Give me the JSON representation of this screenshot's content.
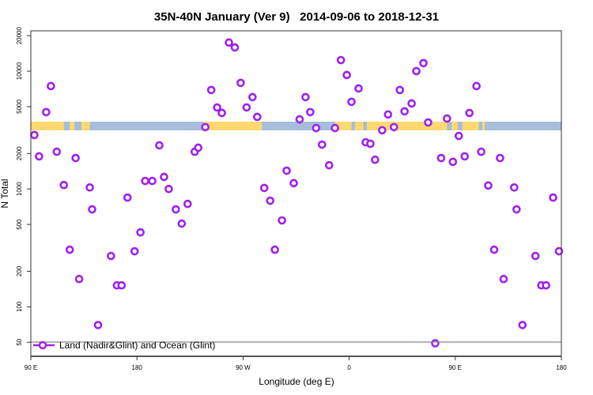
{
  "chart_data": {
    "type": "scatter",
    "title": "35N-40N January (Ver 9)   2014-09-06 to 2018-12-31",
    "xlabel": "Longitude (deg E)",
    "ylabel": "N Total",
    "yscale": "log",
    "xlim": [
      90,
      540
    ],
    "ylim": [
      38,
      22000
    ],
    "xticks": [
      {
        "value": 90,
        "label": "90 E"
      },
      {
        "value": 180,
        "label": "180"
      },
      {
        "value": 270,
        "label": "90 W"
      },
      {
        "value": 360,
        "label": "0"
      },
      {
        "value": 450,
        "label": "90 E"
      },
      {
        "value": 540,
        "label": "180"
      }
    ],
    "yticks": [
      {
        "value": 50,
        "label": "50"
      },
      {
        "value": 100,
        "label": "100"
      },
      {
        "value": 200,
        "label": "200"
      },
      {
        "value": 500,
        "label": "500"
      },
      {
        "value": 1000,
        "label": "1000"
      },
      {
        "value": 2000,
        "label": "2000"
      },
      {
        "value": 5000,
        "label": "5000"
      },
      {
        "value": 10000,
        "label": "10000"
      },
      {
        "value": 20000,
        "label": "20000"
      }
    ],
    "grid": false,
    "legend": {
      "placement": "bottom-left",
      "entries": [
        {
          "label": "Land (Nadir&Glint) and Ocean (Glint)",
          "color": "#A020F0"
        }
      ]
    },
    "colors": {
      "marker": "#A020F0",
      "land": "#FFD970",
      "ocean": "#A6BDDB"
    },
    "land_segments": [
      [
        90,
        118
      ],
      [
        123,
        127
      ],
      [
        133,
        140
      ],
      [
        237,
        286
      ],
      [
        348,
        362
      ],
      [
        365,
        372
      ],
      [
        375,
        443
      ],
      [
        447,
        452
      ],
      [
        456,
        470
      ],
      [
        473,
        475
      ]
    ],
    "series": [
      {
        "name": "Land (Nadir&Glint) and Ocean (Glint)",
        "x": [
          93,
          97,
          103,
          107,
          112,
          118,
          123,
          128,
          131,
          140,
          142,
          147,
          158,
          163,
          167,
          172,
          178,
          183,
          187,
          193,
          199,
          203,
          207,
          213,
          218,
          223,
          229,
          232,
          238,
          243,
          248,
          252,
          258,
          263,
          268,
          273,
          278,
          282,
          288,
          293,
          297,
          303,
          307,
          313,
          318,
          323,
          327,
          332,
          337,
          343,
          348,
          353,
          358,
          362,
          368,
          374,
          378,
          382,
          388,
          393,
          398,
          403,
          407,
          413,
          417,
          423,
          427,
          433,
          438,
          443,
          448,
          453,
          458,
          462,
          468,
          472,
          478,
          483,
          488,
          491,
          500,
          502,
          507,
          518,
          523,
          527,
          533,
          538
        ],
        "y": [
          2870,
          1890,
          4490,
          7470,
          2070,
          1080,
          305,
          1830,
          172,
          1030,
          671,
          70,
          270,
          152,
          152,
          845,
          296,
          428,
          1170,
          1170,
          2345,
          1265,
          1000,
          671,
          508,
          747,
          2070,
          2240,
          3350,
          6920,
          4920,
          4420,
          17500,
          15900,
          7950,
          4920,
          6020,
          4090,
          1020,
          795,
          305,
          541,
          1430,
          1120,
          3900,
          6020,
          4490,
          3290,
          2380,
          1590,
          3290,
          12400,
          9270,
          5490,
          7130,
          2490,
          2420,
          1770,
          3150,
          4290,
          3350,
          6920,
          4560,
          5320,
          10000,
          11700,
          3670,
          49,
          1830,
          3960,
          1700,
          2820,
          1890,
          4420,
          7470,
          2070,
          1070,
          305,
          1830,
          172,
          1030,
          671,
          70,
          270,
          152,
          152,
          845,
          296
        ]
      }
    ]
  }
}
